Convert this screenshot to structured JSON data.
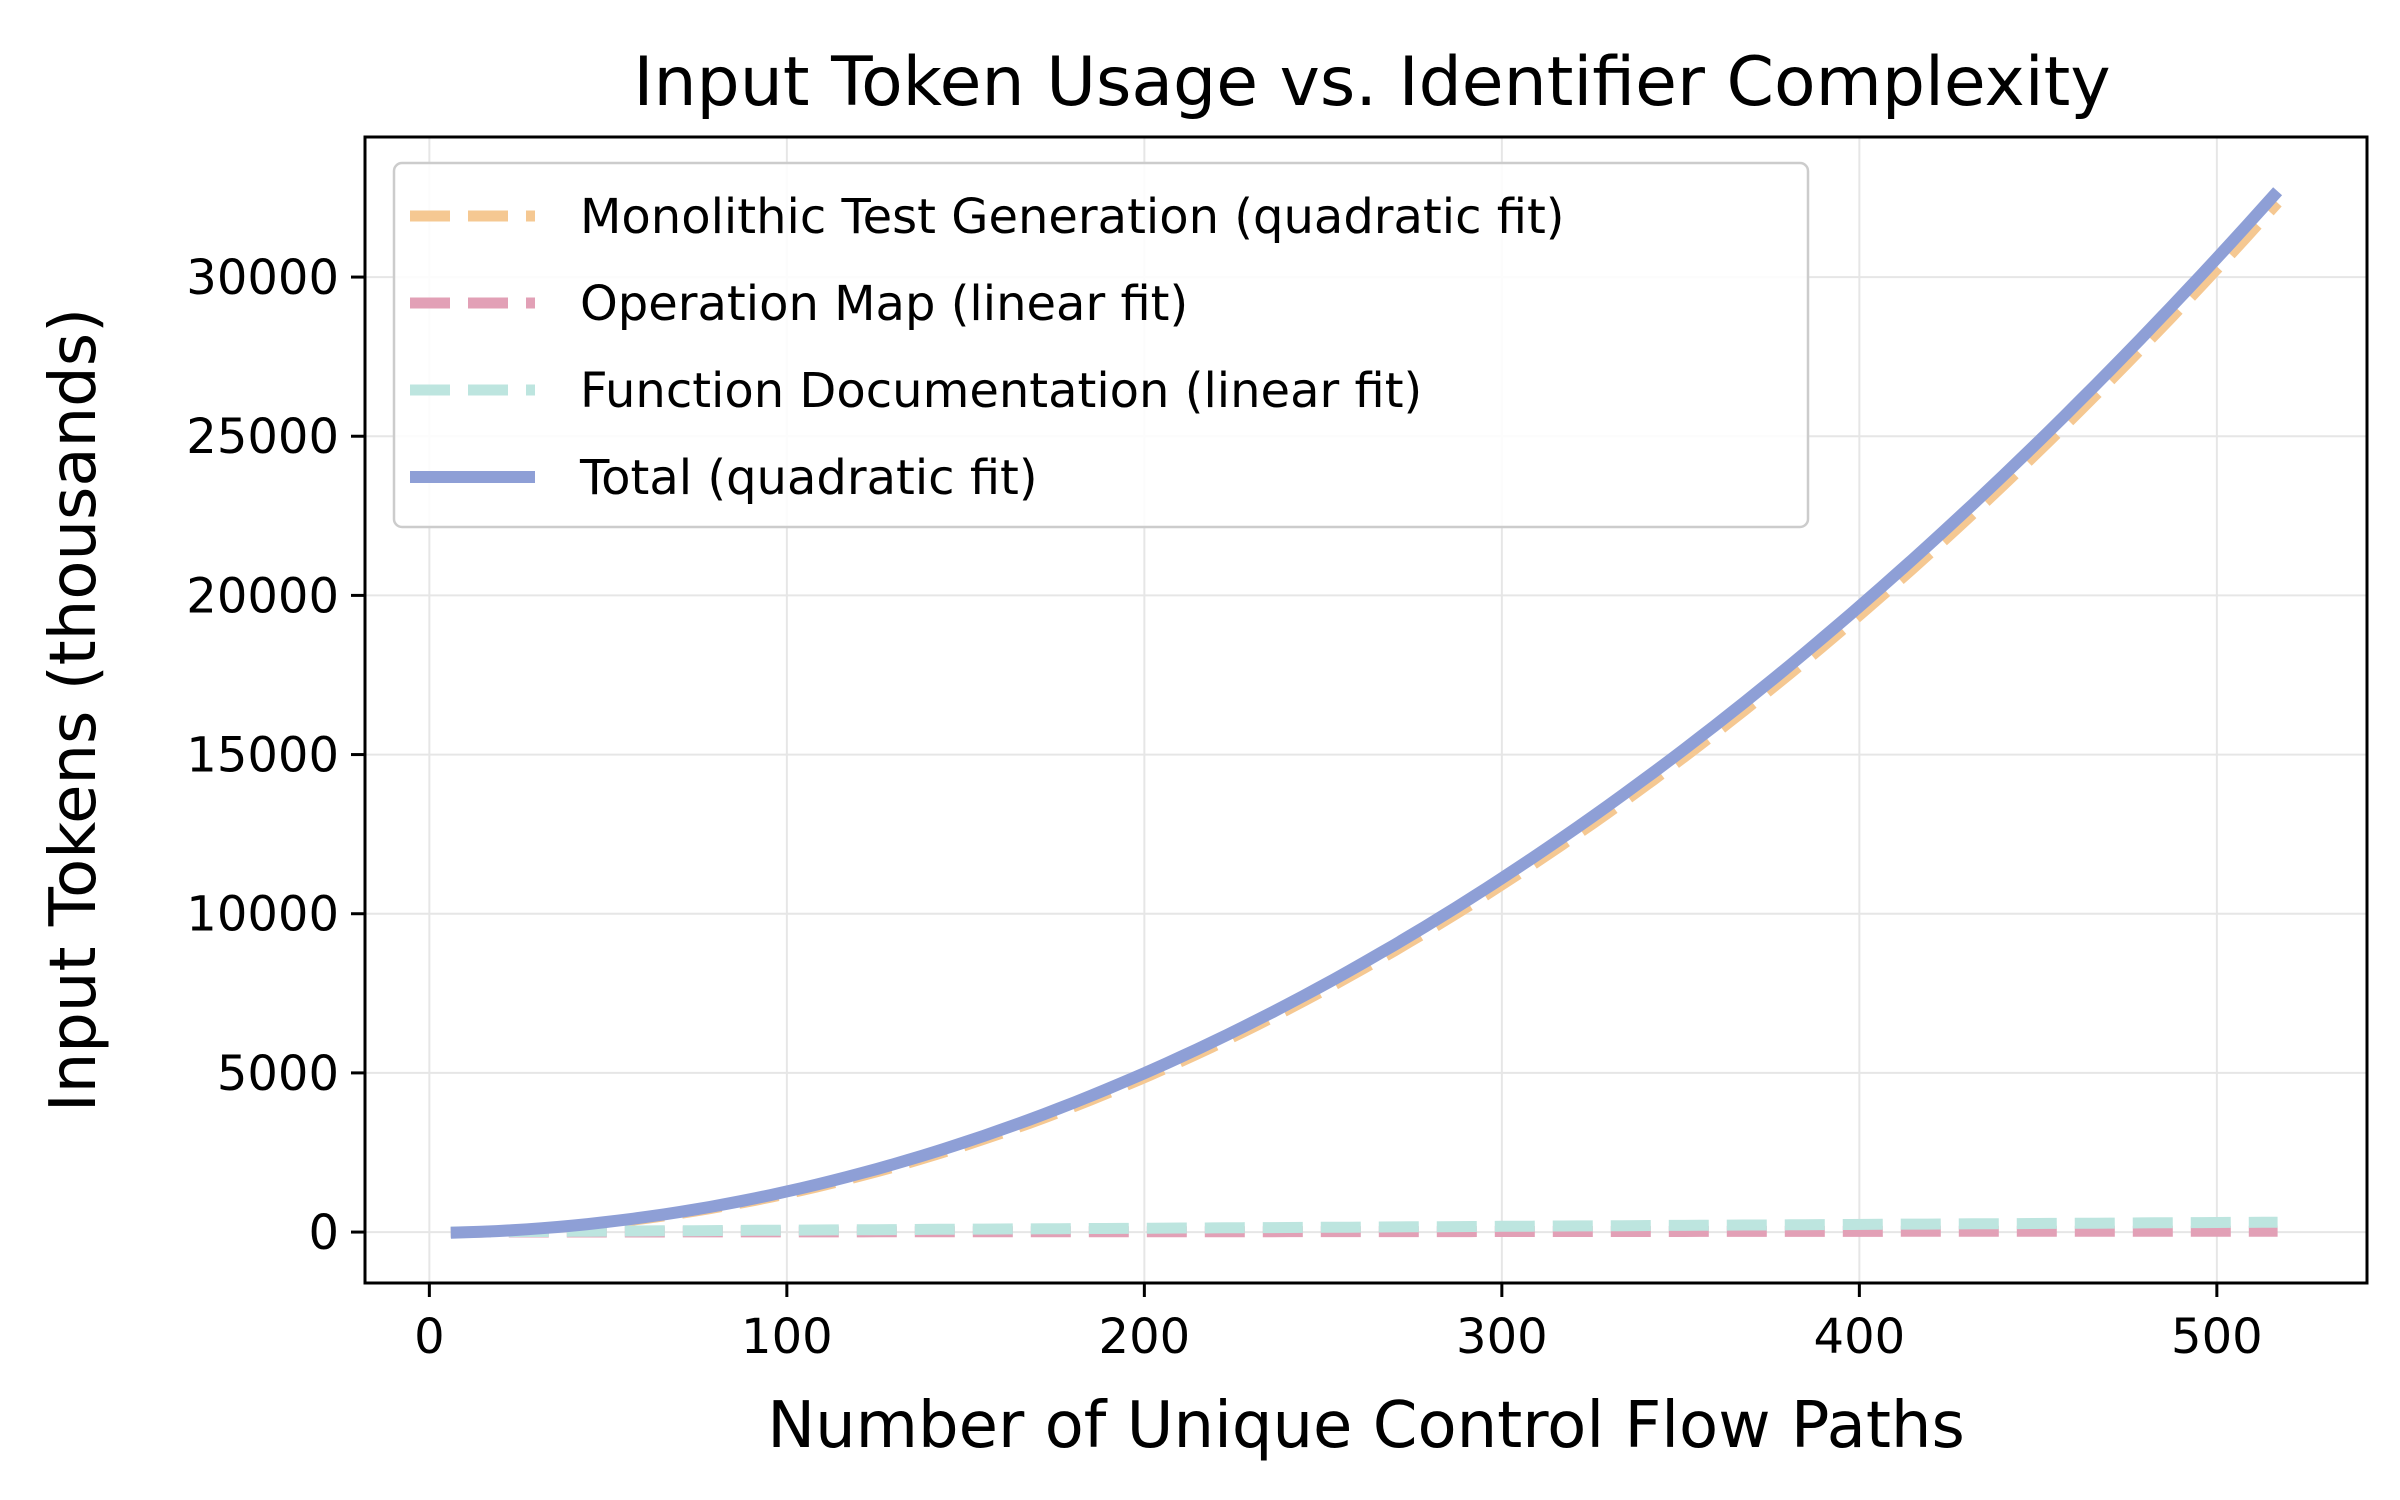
{
  "chart_data": {
    "type": "line",
    "title": "Input Token Usage vs. Identifier Complexity",
    "xlabel": "Number of Unique Control Flow Paths",
    "ylabel": "Input Tokens (thousands)",
    "xlim": [
      -18,
      542
    ],
    "ylim": [
      -1600,
      34400
    ],
    "xticks": [
      0,
      100,
      200,
      300,
      400,
      500
    ],
    "yticks": [
      0,
      5000,
      10000,
      15000,
      20000,
      25000,
      30000
    ],
    "grid": true,
    "legend_position": "top-left",
    "x_range": [
      6,
      517
    ],
    "series": [
      {
        "name": "Monolithic Test Generation (quadratic fit)",
        "fit": "quadratic",
        "coefficients": {
          "a": 0.1205,
          "b": 0.3,
          "c": -30
        },
        "color": "#f5c892",
        "style": "dashed"
      },
      {
        "name": "Operation Map (linear fit)",
        "fit": "linear",
        "coefficients": {
          "m": 0.055,
          "c": 0
        },
        "color": "#e2a0b6",
        "style": "dashed"
      },
      {
        "name": "Function Documentation (linear fit)",
        "fit": "linear",
        "coefficients": {
          "m": 0.6,
          "c": 0
        },
        "color": "#bde5df",
        "style": "dashed"
      },
      {
        "name": "Total (quadratic fit)",
        "fit": "quadratic",
        "coefficients": {
          "a": 0.1205,
          "b": 1.0,
          "c": -30
        },
        "color": "#8e9fd6",
        "style": "solid"
      }
    ]
  }
}
